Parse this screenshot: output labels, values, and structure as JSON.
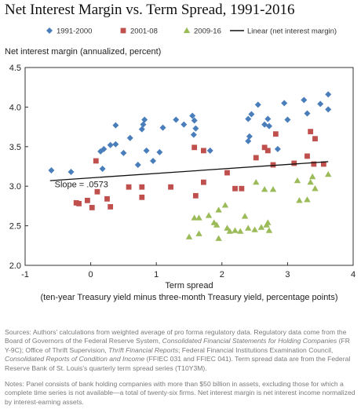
{
  "title": "Net Interest Margin vs. Term Spread, 1991-2016",
  "chart_data": {
    "type": "scatter",
    "title": "Net Interest Margin vs. Term Spread, 1991-2016",
    "ylabel": "Net interest margin (annualized, percent)",
    "xlabel": "Term spread",
    "xlabel_sub": "(ten-year Treasury yield minus three-month Treasury yield, percentage points)",
    "xlim": [
      -1,
      4
    ],
    "ylim": [
      2.0,
      4.5
    ],
    "xticks": [
      -1,
      0,
      1,
      2,
      3,
      4
    ],
    "xtick_labels": [
      "-1",
      "0",
      "1",
      "2",
      "3",
      "4"
    ],
    "yticks": [
      2.0,
      2.5,
      3.0,
      3.5,
      4.0,
      4.5
    ],
    "ytick_labels": [
      "2.0",
      "2.5",
      "3.0",
      "3.5",
      "4.0",
      "4.5"
    ],
    "grid": false,
    "legend_position": "top",
    "series": [
      {
        "name": "1991-2000",
        "marker": "diamond",
        "color": "#4a7ebb",
        "points": [
          [
            -0.6,
            3.2
          ],
          [
            -0.3,
            3.18
          ],
          [
            0.18,
            3.22
          ],
          [
            0.15,
            3.44
          ],
          [
            0.2,
            3.47
          ],
          [
            0.3,
            3.52
          ],
          [
            0.38,
            3.53
          ],
          [
            0.38,
            3.77
          ],
          [
            0.5,
            3.42
          ],
          [
            0.6,
            3.61
          ],
          [
            0.72,
            3.27
          ],
          [
            0.78,
            3.72
          ],
          [
            0.8,
            3.78
          ],
          [
            0.82,
            3.84
          ],
          [
            0.85,
            3.45
          ],
          [
            0.95,
            3.32
          ],
          [
            1.05,
            3.43
          ],
          [
            1.1,
            3.74
          ],
          [
            1.3,
            3.84
          ],
          [
            1.42,
            3.78
          ],
          [
            1.55,
            3.89
          ],
          [
            1.58,
            3.83
          ],
          [
            1.57,
            3.65
          ],
          [
            1.6,
            3.73
          ],
          [
            1.82,
            3.45
          ],
          [
            2.4,
            3.85
          ],
          [
            2.45,
            3.91
          ],
          [
            2.55,
            4.03
          ],
          [
            2.42,
            3.63
          ],
          [
            2.4,
            3.57
          ],
          [
            2.65,
            3.78
          ],
          [
            2.7,
            3.85
          ],
          [
            2.72,
            3.76
          ],
          [
            2.85,
            3.47
          ],
          [
            2.95,
            4.05
          ],
          [
            3.0,
            3.84
          ],
          [
            3.25,
            4.09
          ],
          [
            3.3,
            3.92
          ],
          [
            3.5,
            4.04
          ],
          [
            3.62,
            4.16
          ],
          [
            3.62,
            3.97
          ]
        ]
      },
      {
        "name": "2001-08",
        "marker": "square",
        "color": "#c0504d",
        "points": [
          [
            -0.22,
            2.79
          ],
          [
            -0.18,
            2.78
          ],
          [
            -0.05,
            2.82
          ],
          [
            0.02,
            2.73
          ],
          [
            0.1,
            2.93
          ],
          [
            0.08,
            3.32
          ],
          [
            0.25,
            2.84
          ],
          [
            0.3,
            2.74
          ],
          [
            0.58,
            2.99
          ],
          [
            0.78,
            2.99
          ],
          [
            0.78,
            2.86
          ],
          [
            1.22,
            2.99
          ],
          [
            1.58,
            3.49
          ],
          [
            1.6,
            2.88
          ],
          [
            1.72,
            3.45
          ],
          [
            1.72,
            3.05
          ],
          [
            2.08,
            3.17
          ],
          [
            2.2,
            2.97
          ],
          [
            2.3,
            2.97
          ],
          [
            2.52,
            3.36
          ],
          [
            2.65,
            3.49
          ],
          [
            2.7,
            3.45
          ],
          [
            2.78,
            3.27
          ],
          [
            2.82,
            3.66
          ],
          [
            3.1,
            3.29
          ],
          [
            3.3,
            3.38
          ],
          [
            3.35,
            3.69
          ],
          [
            3.42,
            3.6
          ],
          [
            3.4,
            3.28
          ],
          [
            3.55,
            3.28
          ]
        ]
      },
      {
        "name": "2009-16",
        "marker": "triangle",
        "color": "#9bbb59",
        "points": [
          [
            1.5,
            2.36
          ],
          [
            1.58,
            2.6
          ],
          [
            1.65,
            2.6
          ],
          [
            1.65,
            2.4
          ],
          [
            1.8,
            2.63
          ],
          [
            1.88,
            2.54
          ],
          [
            1.92,
            2.51
          ],
          [
            1.95,
            2.34
          ],
          [
            1.95,
            2.7
          ],
          [
            2.05,
            2.76
          ],
          [
            2.08,
            2.47
          ],
          [
            2.12,
            2.43
          ],
          [
            2.2,
            2.44
          ],
          [
            2.28,
            2.43
          ],
          [
            2.35,
            2.62
          ],
          [
            2.4,
            2.47
          ],
          [
            2.5,
            2.45
          ],
          [
            2.52,
            3.05
          ],
          [
            2.6,
            2.48
          ],
          [
            2.65,
            2.96
          ],
          [
            2.68,
            2.51
          ],
          [
            2.7,
            2.54
          ],
          [
            2.72,
            2.44
          ],
          [
            2.78,
            2.96
          ],
          [
            3.15,
            3.07
          ],
          [
            3.18,
            2.82
          ],
          [
            3.3,
            2.83
          ],
          [
            3.35,
            3.05
          ],
          [
            3.38,
            3.12
          ],
          [
            3.42,
            2.97
          ],
          [
            3.62,
            3.15
          ]
        ]
      }
    ],
    "trendline": {
      "name": "Linear (net interest margin)",
      "color": "#111111",
      "x": [
        -0.62,
        3.62
      ],
      "y": [
        3.07,
        3.31
      ],
      "annotation": "Slope = .0573"
    }
  },
  "sources": {
    "line1": "Sources: Authors' calculations from weighted average of pro forma regulatory data. Regulatory data come from the Board of Governors of the Federal Reserve System, ",
    "fed_report": "Consolidated Financial Statements for Holding Companies",
    "line2": " (FR Y-9C); Office of Thrift Supervision, ",
    "thrift_report": "Thrift Financial Reports",
    "line3": "; Federal Financial Institutions Examination Council, ",
    "call_report": "Consolidated Reports of Condition and Income",
    "line4": " (FFIEC 031 and FFIEC 041). Term spread data are from the Federal Reserve Bank of St. Louis's quarterly term spread series (T10Y3M)."
  },
  "notes": "Notes: Panel consists of bank holding companies with more than $50 billion in assets, excluding those for which a complete time series is not available—a total of twenty-six firms. Net interest margin is net interest income normalized by interest-earning assets."
}
